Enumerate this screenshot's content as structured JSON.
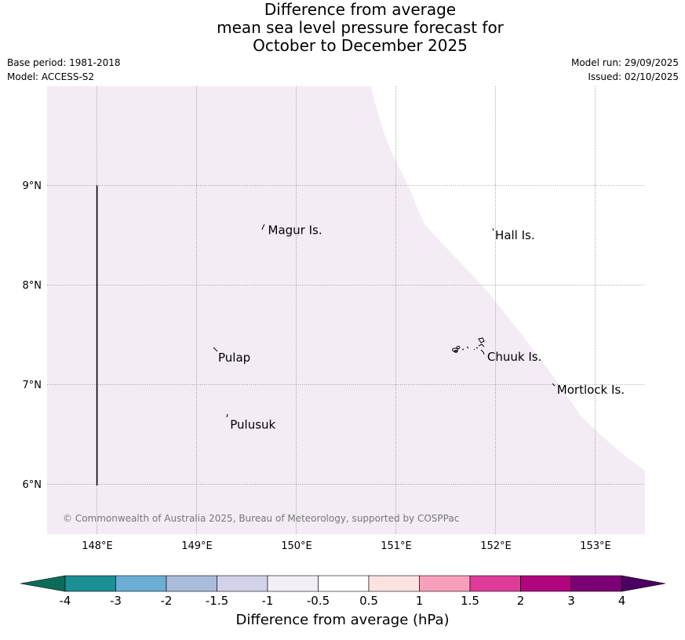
{
  "header": {
    "title_line1": "Difference from average",
    "title_line2": "mean sea level pressure forecast for",
    "title_line3": "October to December 2025",
    "base_period": "Base period: 1981-2018",
    "model": "Model: ACCESS-S2",
    "model_run": "Model run: 29/09/2025",
    "issued": "Issued: 02/10/2025"
  },
  "map": {
    "lon_labels": [
      "148°E",
      "149°E",
      "150°E",
      "151°E",
      "152°E",
      "153°E"
    ],
    "lat_labels": [
      "9°N",
      "8°N",
      "7°N",
      "6°N"
    ],
    "places": [
      {
        "name": "Magur Is.",
        "lon": 149.7,
        "lat": 8.55
      },
      {
        "name": "Hall Is.",
        "lon": 151.98,
        "lat": 8.5
      },
      {
        "name": "Pulap",
        "lon": 149.2,
        "lat": 7.27
      },
      {
        "name": "Chuuk Is.",
        "lon": 151.9,
        "lat": 7.28
      },
      {
        "name": "Mortlock Is.",
        "lon": 152.6,
        "lat": 6.95
      },
      {
        "name": "Pulusuk",
        "lon": 149.32,
        "lat": 6.6
      }
    ],
    "anomaly_fill_color": "#f3ecf5",
    "copyright": "© Commonwealth of Australia 2025, Bureau of Meteorology, supported by COSPPac"
  },
  "colorbar": {
    "title": "Difference from average (hPa)",
    "labels": [
      "-4",
      "-3",
      "-2",
      "-1.5",
      "-1",
      "-0.5",
      "0.5",
      "1",
      "1.5",
      "2",
      "3",
      "4"
    ],
    "colors": [
      "#1a8f94",
      "#6aaed3",
      "#a9bcdc",
      "#d2d3e8",
      "#f4eef7",
      "#ffffff",
      "#fde2e2",
      "#f7a0bc",
      "#df3c9a",
      "#b1057f",
      "#7b0074"
    ],
    "low_extend_color": "#0d6b5a",
    "high_extend_color": "#4a0060"
  }
}
